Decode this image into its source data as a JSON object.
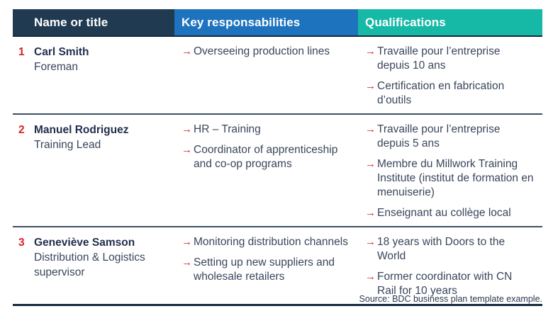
{
  "glyphs": {
    "bullet": "→"
  },
  "colors": {
    "header_name_bg": "#203a52",
    "header_responsibilities_bg": "#1e73be",
    "header_qualifications_bg": "#16b8a6",
    "accent_red": "#d6232b",
    "name_text": "#222f4e",
    "body_text": "#3a465c"
  },
  "table": {
    "headers": [
      {
        "label": "Name or title"
      },
      {
        "label": "Key responsabilities"
      },
      {
        "label": "Qualifications"
      }
    ],
    "rows": [
      {
        "number": "1",
        "name": "Carl Smith",
        "title": "Foreman",
        "responsibilities": [
          "Overseeing production lines"
        ],
        "qualifications": [
          "Travaille pour l’entreprise depuis 10 ans",
          "Certification en fabrication d’outils"
        ]
      },
      {
        "number": "2",
        "name": "Manuel Rodriguez",
        "title": "Training Lead",
        "responsibilities": [
          "HR – Training",
          "Coordinator of apprenticeship and co-op programs"
        ],
        "qualifications": [
          "Travaille pour l’entreprise depuis 5 ans",
          "Membre du Millwork Training Institute (institut de formation en menuiserie)",
          "Enseignant au collège local"
        ]
      },
      {
        "number": "3",
        "name": "Geneviève Samson",
        "title": "Distribution & Logistics supervisor",
        "responsibilities": [
          "Monitoring distribution channels",
          "Setting up new suppliers and wholesale retailers"
        ],
        "qualifications": [
          "18 years with Doors to the World",
          "Former coordinator with CN Rail for 10 years"
        ]
      }
    ]
  },
  "footer": {
    "source": "Source: BDC business plan template example."
  }
}
